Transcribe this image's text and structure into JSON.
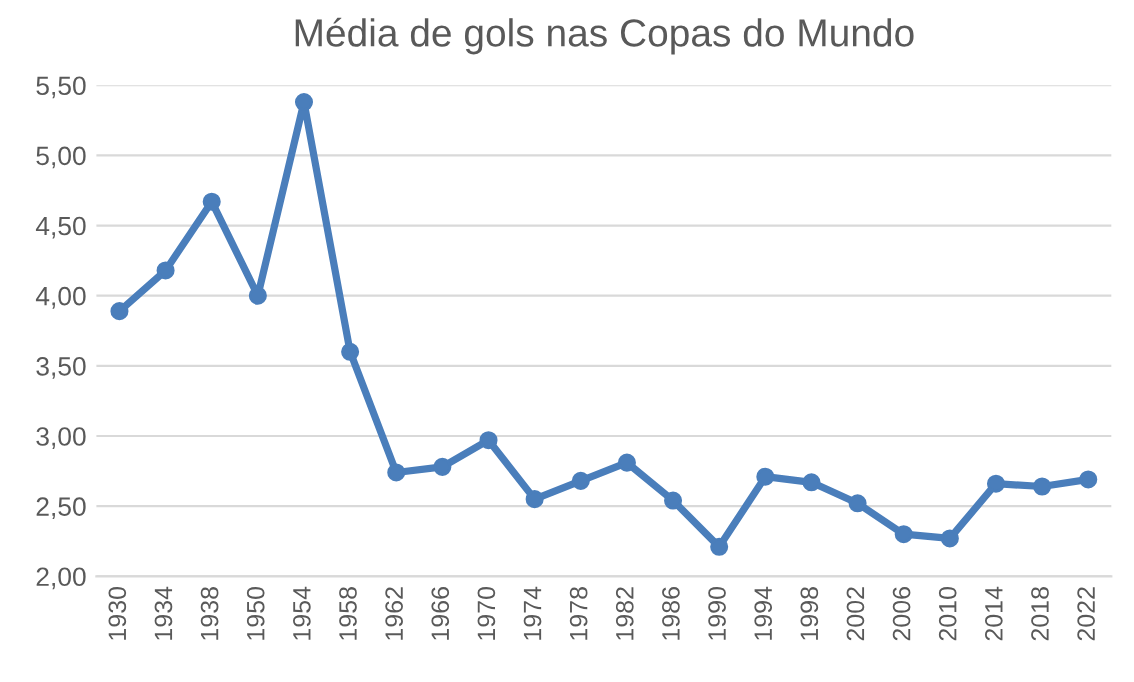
{
  "chart_data": {
    "type": "line",
    "title": "Média de gols nas Copas do Mundo",
    "categories": [
      "1930",
      "1934",
      "1938",
      "1950",
      "1954",
      "1958",
      "1962",
      "1966",
      "1970",
      "1974",
      "1978",
      "1982",
      "1986",
      "1990",
      "1994",
      "1998",
      "2002",
      "2006",
      "2010",
      "2014",
      "2018",
      "2022"
    ],
    "series": [
      {
        "color": "#4a7ebb",
        "values": [
          3.89,
          4.18,
          4.67,
          4.0,
          5.38,
          3.6,
          2.74,
          2.78,
          2.97,
          2.55,
          2.68,
          2.81,
          2.54,
          2.21,
          2.71,
          2.67,
          2.52,
          2.3,
          2.27,
          2.66,
          2.64,
          2.69
        ]
      }
    ],
    "ylim": [
      2.0,
      5.5
    ],
    "yticks": [
      {
        "value": 2.0,
        "label": "2,00"
      },
      {
        "value": 2.5,
        "label": "2,50"
      },
      {
        "value": 3.0,
        "label": "3,00"
      },
      {
        "value": 3.5,
        "label": "3,50"
      },
      {
        "value": 4.0,
        "label": "4,00"
      },
      {
        "value": 4.5,
        "label": "4,50"
      },
      {
        "value": 5.0,
        "label": "5,00"
      },
      {
        "value": 5.5,
        "label": "5,50"
      }
    ],
    "grid": "y",
    "marker": "circle",
    "line_style": "solid",
    "legend": false
  }
}
